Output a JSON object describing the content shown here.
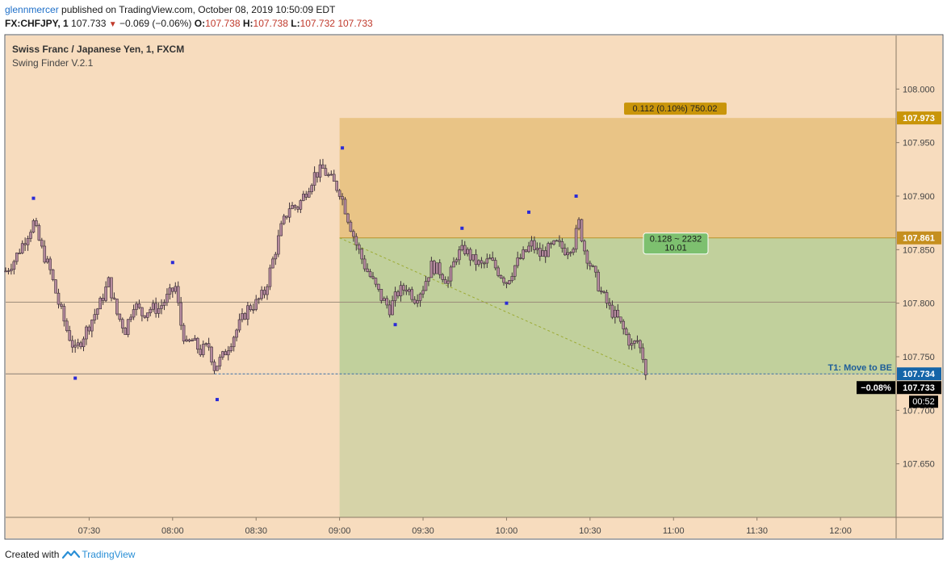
{
  "publish_line": {
    "user": "glennmercer",
    "rest": " published on TradingView.com, October 08, 2019 10:50:09 EDT"
  },
  "quote_line": {
    "symbol": "FX:CHFJPY, 1",
    "last": "107.733",
    "arrow": "▼",
    "change": "−0.069 (−0.06%)",
    "o_label": "O:",
    "o": "107.738",
    "h_label": "H:",
    "h": "107.738",
    "l_label": "L:",
    "l": "107.732",
    "c": "107.733"
  },
  "chart_data": {
    "type": "candlestick",
    "title": "Swiss Franc / Japanese Yen, 1, FXCM",
    "indicator": "Swing Finder V.2.1",
    "x_ticks": [
      "07:30",
      "08:00",
      "08:30",
      "09:00",
      "09:30",
      "10:00",
      "10:30",
      "11:00",
      "11:30",
      "12:00"
    ],
    "y_ticks": [
      "108.000",
      "107.950",
      "107.900",
      "107.850",
      "107.800",
      "107.750",
      "107.700",
      "107.650"
    ],
    "ylim": [
      107.6,
      108.05
    ],
    "x_range": [
      "07:00",
      "12:20"
    ],
    "close_path": [
      [
        "07:00",
        107.83
      ],
      [
        "07:03",
        107.84
      ],
      [
        "07:07",
        107.86
      ],
      [
        "07:10",
        107.875
      ],
      [
        "07:13",
        107.85
      ],
      [
        "07:16",
        107.83
      ],
      [
        "07:19",
        107.8
      ],
      [
        "07:22",
        107.775
      ],
      [
        "07:25",
        107.755
      ],
      [
        "07:28",
        107.77
      ],
      [
        "07:31",
        107.785
      ],
      [
        "07:34",
        107.8
      ],
      [
        "07:37",
        107.82
      ],
      [
        "07:40",
        107.79
      ],
      [
        "07:43",
        107.775
      ],
      [
        "07:46",
        107.8
      ],
      [
        "07:49",
        107.79
      ],
      [
        "07:52",
        107.795
      ],
      [
        "07:55",
        107.795
      ],
      [
        "07:58",
        107.805
      ],
      [
        "08:01",
        107.815
      ],
      [
        "08:03",
        107.78
      ],
      [
        "08:05",
        107.76
      ],
      [
        "08:07",
        107.765
      ],
      [
        "08:10",
        107.755
      ],
      [
        "08:13",
        107.76
      ],
      [
        "08:15",
        107.74
      ],
      [
        "08:18",
        107.75
      ],
      [
        "08:21",
        107.765
      ],
      [
        "08:24",
        107.78
      ],
      [
        "08:27",
        107.795
      ],
      [
        "08:30",
        107.8
      ],
      [
        "08:33",
        107.81
      ],
      [
        "08:36",
        107.84
      ],
      [
        "08:39",
        107.87
      ],
      [
        "08:42",
        107.89
      ],
      [
        "08:45",
        107.89
      ],
      [
        "08:48",
        107.905
      ],
      [
        "08:51",
        107.92
      ],
      [
        "08:54",
        107.925
      ],
      [
        "08:57",
        107.915
      ],
      [
        "09:00",
        107.905
      ],
      [
        "09:03",
        107.88
      ],
      [
        "09:06",
        107.855
      ],
      [
        "09:09",
        107.835
      ],
      [
        "09:12",
        107.82
      ],
      [
        "09:15",
        107.805
      ],
      [
        "09:18",
        107.795
      ],
      [
        "09:21",
        107.81
      ],
      [
        "09:24",
        107.815
      ],
      [
        "09:27",
        107.805
      ],
      [
        "09:30",
        107.815
      ],
      [
        "09:33",
        107.835
      ],
      [
        "09:36",
        107.83
      ],
      [
        "09:39",
        107.82
      ],
      [
        "09:42",
        107.845
      ],
      [
        "09:45",
        107.85
      ],
      [
        "09:48",
        107.84
      ],
      [
        "09:51",
        107.835
      ],
      [
        "09:54",
        107.84
      ],
      [
        "09:57",
        107.83
      ],
      [
        "10:00",
        107.82
      ],
      [
        "10:03",
        107.835
      ],
      [
        "10:06",
        107.845
      ],
      [
        "10:09",
        107.855
      ],
      [
        "10:12",
        107.845
      ],
      [
        "10:15",
        107.85
      ],
      [
        "10:18",
        107.855
      ],
      [
        "10:21",
        107.85
      ],
      [
        "10:24",
        107.855
      ],
      [
        "10:26",
        107.875
      ],
      [
        "10:28",
        107.85
      ],
      [
        "10:31",
        107.83
      ],
      [
        "10:34",
        107.81
      ],
      [
        "10:37",
        107.795
      ],
      [
        "10:40",
        107.785
      ],
      [
        "10:43",
        107.77
      ],
      [
        "10:45",
        107.76
      ],
      [
        "10:47",
        107.765
      ],
      [
        "10:49",
        107.75
      ],
      [
        "10:50",
        107.733
      ]
    ],
    "swing_markers": [
      [
        "07:10",
        107.898
      ],
      [
        "07:25",
        107.73
      ],
      [
        "08:00",
        107.838
      ],
      [
        "08:16",
        107.71
      ],
      [
        "09:01",
        107.945
      ],
      [
        "09:20",
        107.78
      ],
      [
        "09:44",
        107.87
      ],
      [
        "10:00",
        107.8
      ],
      [
        "10:08",
        107.885
      ],
      [
        "10:25",
        107.9
      ]
    ],
    "reference_lines": [
      107.801,
      107.734
    ],
    "position": {
      "entry": 107.861,
      "stop": 107.973,
      "target": 107.734,
      "stop_label": "0.112 (0.10%) 750.02",
      "target_label_1": "0.128 ~ 2232",
      "target_label_2": "10.01",
      "start": "09:00",
      "trend_from": [
        "09:00",
        107.861
      ],
      "trend_to": [
        "10:50",
        107.734
      ]
    },
    "note": "T1:  Move to BE",
    "price_labels": [
      "107.973",
      "107.861",
      "107.734",
      "107.733"
    ],
    "change_badge": "−0.08%",
    "countdown": "00:52"
  },
  "colors": {
    "bg": "#f7dcbe",
    "stop_zone": "#e9c486",
    "target_zone": "#c1d09c",
    "below_zone": "#d6d3a8",
    "stop_badge": "#c9950a",
    "entry_badge": "#c58f1f",
    "target_badge": "#1565a8",
    "last_badge": "#000000",
    "candle": "#b58a9e",
    "marker": "#2b2bd6"
  },
  "footer": {
    "created_with": "Created with",
    "brand": "TradingView"
  }
}
